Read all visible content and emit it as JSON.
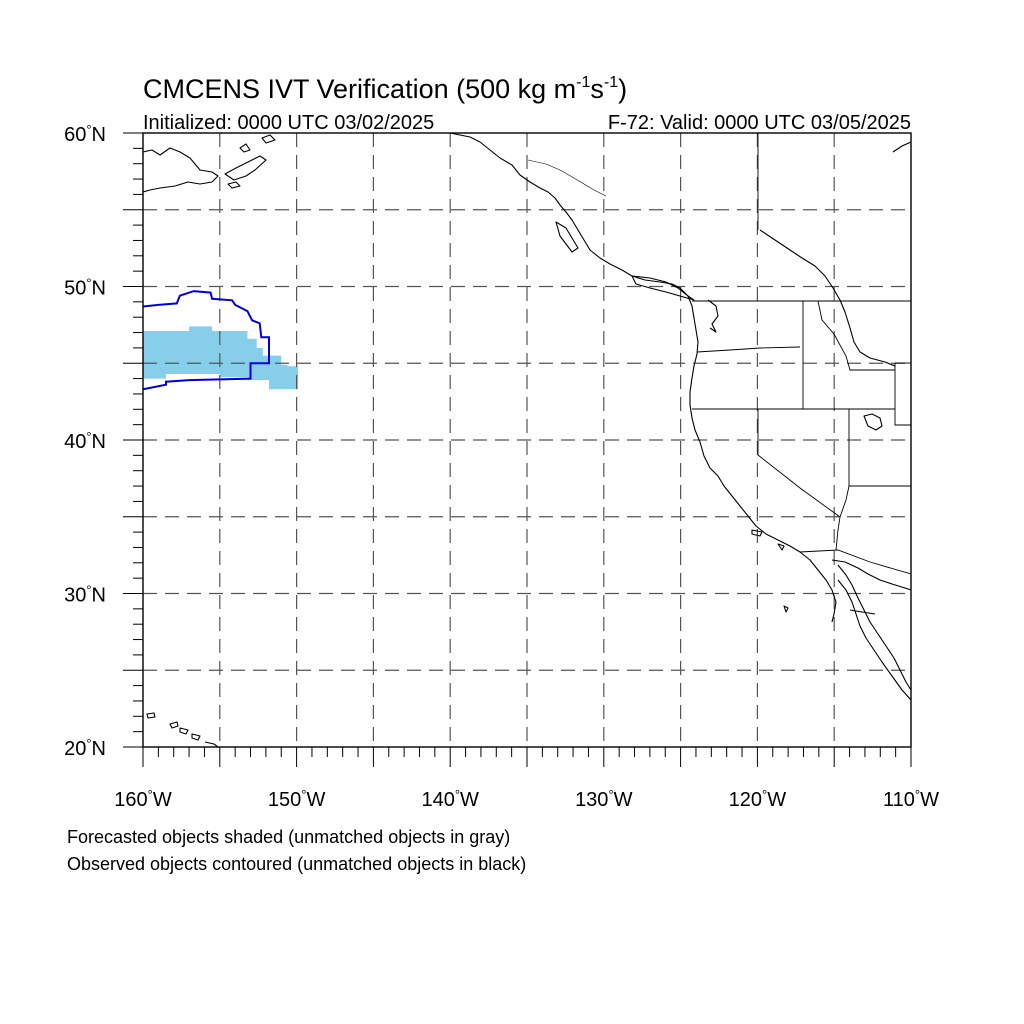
{
  "title": {
    "main": "CMCENS IVT Verification (500 kg m",
    "exp1": "-1",
    "mid": "s",
    "exp2": "-1",
    "close": ")"
  },
  "subtitle": {
    "left": "Initialized: 0000 UTC 03/02/2025",
    "right": "F-72: Valid: 0000 UTC 03/05/2025"
  },
  "axes": {
    "lon_range": [
      -160,
      -110
    ],
    "lat_range": [
      20,
      60
    ],
    "lon_ticks": [
      {
        "value": -160,
        "label": "160",
        "hem": "W"
      },
      {
        "value": -150,
        "label": "150",
        "hem": "W"
      },
      {
        "value": -140,
        "label": "140",
        "hem": "W"
      },
      {
        "value": -130,
        "label": "130",
        "hem": "W"
      },
      {
        "value": -120,
        "label": "120",
        "hem": "W"
      },
      {
        "value": -110,
        "label": "110",
        "hem": "W"
      }
    ],
    "lat_ticks": [
      {
        "value": 60,
        "label": "60",
        "hem": "N"
      },
      {
        "value": 50,
        "label": "50",
        "hem": "N"
      },
      {
        "value": 40,
        "label": "40",
        "hem": "N"
      },
      {
        "value": 30,
        "label": "30",
        "hem": "N"
      },
      {
        "value": 20,
        "label": "20",
        "hem": "N"
      }
    ],
    "grid": true,
    "grid_spacing_deg": 5
  },
  "forecast_object": {
    "color": "#87ceeb",
    "outline_lonlat": [
      [
        -160,
        47.1
      ],
      [
        -157,
        47.1
      ],
      [
        -157,
        47.4
      ],
      [
        -155.5,
        47.4
      ],
      [
        -155.5,
        47.1
      ],
      [
        -153.2,
        47.1
      ],
      [
        -153.2,
        46.6
      ],
      [
        -152.6,
        46.6
      ],
      [
        -152.6,
        46.0
      ],
      [
        -152.2,
        46.0
      ],
      [
        -152.2,
        45.5
      ],
      [
        -151.0,
        45.5
      ],
      [
        -151.0,
        44.9
      ],
      [
        -150.6,
        44.9
      ],
      [
        -150.6,
        44.8
      ],
      [
        -149.9,
        44.8
      ],
      [
        -149.9,
        43.3
      ],
      [
        -150.6,
        43.3
      ],
      [
        -150.6,
        43.3
      ],
      [
        -151.8,
        43.3
      ],
      [
        -151.8,
        43.9
      ],
      [
        -153.2,
        43.9
      ],
      [
        -153.2,
        44.1
      ],
      [
        -155,
        44.1
      ],
      [
        -155,
        44.3
      ],
      [
        -158.5,
        44.3
      ],
      [
        -158.5,
        44.0
      ],
      [
        -160,
        44.0
      ]
    ]
  },
  "observed_object": {
    "color": "#0000dd",
    "outline_lonlat": [
      [
        -160,
        48.7
      ],
      [
        -159.0,
        48.8
      ],
      [
        -157.8,
        48.9
      ],
      [
        -157.6,
        49.4
      ],
      [
        -156.7,
        49.7
      ],
      [
        -155.6,
        49.6
      ],
      [
        -155.5,
        49.2
      ],
      [
        -154.2,
        49.1
      ],
      [
        -154.0,
        48.8
      ],
      [
        -153.2,
        48.4
      ],
      [
        -152.9,
        47.8
      ],
      [
        -152.4,
        47.6
      ],
      [
        -152.3,
        46.7
      ],
      [
        -151.8,
        46.7
      ],
      [
        -151.8,
        45.0
      ],
      [
        -153.0,
        45.0
      ],
      [
        -153.0,
        44.0
      ],
      [
        -157,
        43.9
      ],
      [
        -158.5,
        43.8
      ],
      [
        -158.5,
        43.6
      ],
      [
        -160,
        43.3
      ]
    ]
  },
  "footer": {
    "line1": "Forecasted objects shaded (unmatched objects in gray)",
    "line2": "Observed objects contoured (unmatched objects in black)"
  }
}
